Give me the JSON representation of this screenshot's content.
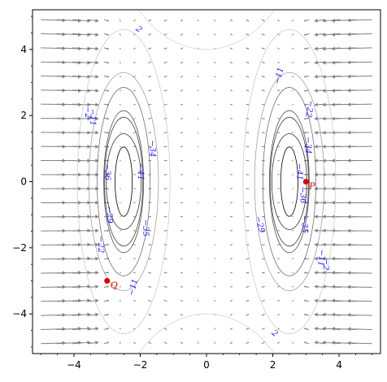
{
  "chart_data": {
    "type": "contour",
    "title": "",
    "xlabel": "",
    "ylabel": "",
    "xlim": [
      -5.25,
      5.25
    ],
    "ylim": [
      -5.2,
      5.2
    ],
    "x_ticks": [
      -4,
      -2,
      0,
      2,
      4
    ],
    "y_ticks": [
      -4,
      -2,
      0,
      2,
      4
    ],
    "x_tick_labels": [
      "−4",
      "−2",
      "0",
      "2",
      "4"
    ],
    "y_tick_labels": [
      "−4",
      "−2",
      "0",
      "2",
      "4"
    ],
    "grid": false,
    "centers_x": [
      -2.5,
      2.5
    ],
    "contour_levels": [
      {
        "value": "2",
        "half_width": 1.4,
        "half_height": 4.6,
        "color": "#cccccc"
      },
      {
        "value": "−11",
        "half_width": 1.05,
        "half_height": 3.3,
        "color": "#a0a0a0"
      },
      {
        "value": "−22",
        "half_width": 0.8,
        "half_height": 2.85,
        "color": "#707070"
      },
      {
        "value": "−29",
        "half_width": 0.6,
        "half_height": 2.15,
        "color": "#505050"
      },
      {
        "value": "−35",
        "half_width": 0.58,
        "half_height": 1.95,
        "color": "#404040"
      },
      {
        "value": "−36",
        "half_width": 0.53,
        "half_height": 1.45,
        "color": "#303030"
      },
      {
        "value": "−41",
        "half_width": 0.26,
        "half_height": 1.05,
        "color": "#000000"
      }
    ],
    "contour_labels": [
      {
        "text": "2",
        "x": -2.05,
        "y": 4.6,
        "angle": 40
      },
      {
        "text": "2",
        "x": 2.05,
        "y": -4.6,
        "angle": 40
      },
      {
        "text": "−11",
        "x": 2.2,
        "y": 3.2,
        "angle": -75
      },
      {
        "text": "−11",
        "x": -2.2,
        "y": -3.2,
        "angle": -75
      },
      {
        "text": "−2",
        "x": -3.6,
        "y": 2.1,
        "angle": 90
      },
      {
        "text": "−11",
        "x": -3.45,
        "y": 1.95,
        "angle": 90
      },
      {
        "text": "−22",
        "x": 3.1,
        "y": 2.2,
        "angle": 100
      },
      {
        "text": "−34",
        "x": 3.05,
        "y": 1.1,
        "angle": 90
      },
      {
        "text": "−41",
        "x": 2.8,
        "y": 0.3,
        "angle": 90
      },
      {
        "text": "−36",
        "x": 2.9,
        "y": -0.4,
        "angle": 90
      },
      {
        "text": "−29",
        "x": 1.6,
        "y": -1.3,
        "angle": 75
      },
      {
        "text": "−35",
        "x": 2.95,
        "y": -1.3,
        "angle": 90
      },
      {
        "text": "−11",
        "x": 3.45,
        "y": -2.3,
        "angle": 95
      },
      {
        "text": "−2",
        "x": 3.6,
        "y": -2.5,
        "angle": 95
      },
      {
        "text": "−34",
        "x": -1.65,
        "y": 1.0,
        "angle": 90
      },
      {
        "text": "−41",
        "x": -2.0,
        "y": 0.3,
        "angle": 90
      },
      {
        "text": "−36",
        "x": -3.0,
        "y": 0.3,
        "angle": 90
      },
      {
        "text": "−35",
        "x": -1.85,
        "y": -1.4,
        "angle": 90
      },
      {
        "text": "−29",
        "x": -2.95,
        "y": -1.0,
        "angle": 90
      },
      {
        "text": "−22",
        "x": -3.2,
        "y": -1.9,
        "angle": 90
      }
    ],
    "points": [
      {
        "label": "P",
        "x": 3.0,
        "y": 0.0,
        "color": "#dd0000"
      },
      {
        "label": "Q",
        "x": -3.0,
        "y": -3.0,
        "color": "#dd0000"
      }
    ],
    "vector_field": {
      "color": "#808080",
      "x_range": [
        -5.0,
        5.0
      ],
      "y_range": [
        -4.9,
        4.9
      ],
      "nx": 22,
      "ny": 24
    }
  }
}
